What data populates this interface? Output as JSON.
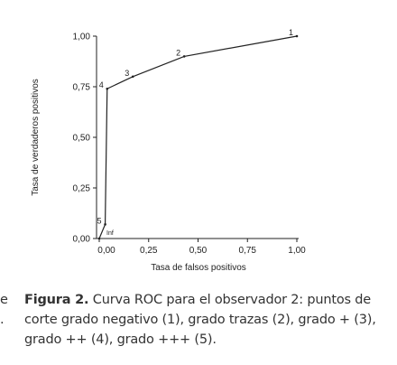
{
  "chart_data": {
    "type": "line",
    "x_label": "Tasa de falsos positivos",
    "y_label": "Tasa de verdaderos positivos",
    "x": [
      0,
      0.03,
      0.04,
      0.17,
      0.43,
      1.0
    ],
    "series": [
      {
        "color": "#222222",
        "values": [
          0,
          0.07,
          0.74,
          0.8,
          0.9,
          1.0
        ],
        "point_labels": [
          "Inf",
          "5",
          "4",
          "3",
          "2",
          "1"
        ]
      }
    ],
    "xlim": [
      0,
      1
    ],
    "ylim": [
      0,
      1
    ],
    "xticks": [
      {
        "value": 0,
        "label": "0,00"
      },
      {
        "value": 0.25,
        "label": "0,25"
      },
      {
        "value": 0.5,
        "label": "0,50"
      },
      {
        "value": 0.75,
        "label": "0,75"
      },
      {
        "value": 1,
        "label": "1,00"
      }
    ],
    "yticks": [
      {
        "value": 0,
        "label": "0,00"
      },
      {
        "value": 0.25,
        "label": "0,25"
      },
      {
        "value": 0.5,
        "label": "0,50"
      },
      {
        "value": 0.75,
        "label": "0,75"
      },
      {
        "value": 1,
        "label": "1,00"
      }
    ]
  },
  "caption": {
    "label": "Figura 2.",
    "lines": [
      "Curva ROC para el observador 2: puntos de",
      "corte grado negativo (1), grado trazas (2), grado + (3),",
      "grado ++ (4), grado +++ (5)."
    ]
  },
  "margin_fragments": [
    "e",
    "."
  ]
}
